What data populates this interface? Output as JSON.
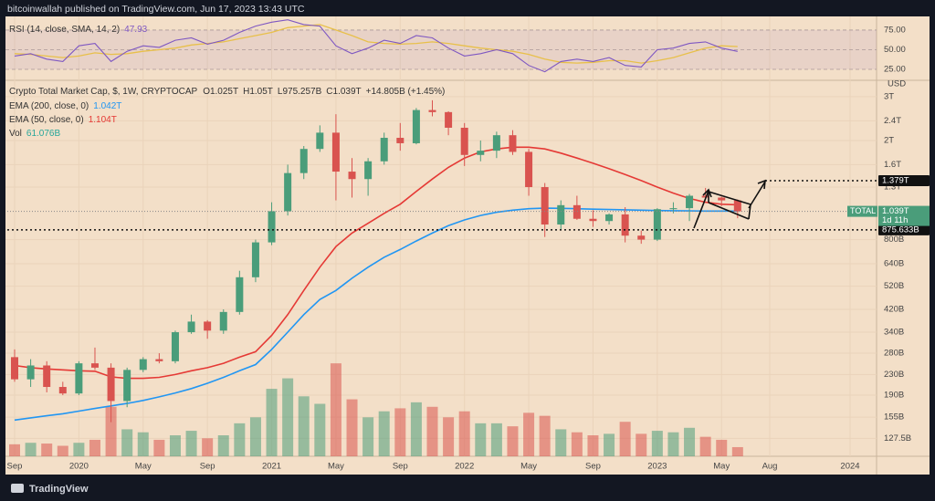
{
  "header": {
    "title": "bitcoinwallah published on TradingView.com, Jun 17, 2023 13:43 UTC"
  },
  "footer": {
    "brand": "TradingView"
  },
  "chart_data": {
    "type": "candlestick",
    "title": "Crypto Total Market Cap, $, 1W, CRYPTOCAP",
    "ohlc_labels": [
      "O1.025T",
      "H1.05T",
      "L975.257B",
      "C1.039T",
      "+14.805B (+1.45%)"
    ],
    "currency": "USD",
    "log_scale": true,
    "up_color": "#4a9d7a",
    "down_color": "#d9534f",
    "x": [
      "2019-09",
      "2019-10",
      "2019-11",
      "2019-12",
      "2020-01",
      "2020-02",
      "2020-03",
      "2020-04",
      "2020-05",
      "2020-06",
      "2020-07",
      "2020-08",
      "2020-09",
      "2020-10",
      "2020-11",
      "2020-12",
      "2021-01",
      "2021-02",
      "2021-03",
      "2021-04",
      "2021-05",
      "2021-06",
      "2021-07",
      "2021-08",
      "2021-09",
      "2021-10",
      "2021-11",
      "2021-12",
      "2022-01",
      "2022-02",
      "2022-03",
      "2022-04",
      "2022-05",
      "2022-06",
      "2022-07",
      "2022-08",
      "2022-09",
      "2022-10",
      "2022-11",
      "2022-12",
      "2023-01",
      "2023-02",
      "2023-03",
      "2023-04",
      "2023-05",
      "2023-06"
    ],
    "open": [
      270,
      220,
      250,
      205,
      193,
      255,
      245,
      180,
      240,
      265,
      260,
      340,
      375,
      345,
      410,
      565,
      780,
      1040,
      1480,
      1850,
      2150,
      1500,
      1400,
      1650,
      2050,
      1950,
      2650,
      2600,
      2250,
      1750,
      1820,
      2100,
      1800,
      1300,
      920,
      1100,
      970,
      950,
      1010,
      830,
      800,
      1060,
      1070,
      1200,
      1180,
      1150
    ],
    "high": [
      290,
      265,
      260,
      215,
      260,
      295,
      255,
      245,
      270,
      280,
      345,
      400,
      380,
      420,
      600,
      800,
      1130,
      1600,
      1900,
      2300,
      2550,
      1700,
      1700,
      2150,
      2350,
      2700,
      2900,
      2620,
      2350,
      2000,
      2170,
      2200,
      1850,
      1350,
      1150,
      1200,
      1050,
      1020,
      1080,
      870,
      1070,
      1130,
      1220,
      1290,
      1190,
      1160
    ],
    "low": [
      215,
      205,
      195,
      190,
      190,
      240,
      148,
      170,
      235,
      255,
      255,
      335,
      320,
      335,
      400,
      540,
      760,
      1000,
      1400,
      1800,
      1150,
      1180,
      1200,
      1600,
      1820,
      1930,
      2500,
      2100,
      1580,
      1650,
      1700,
      1750,
      1200,
      820,
      880,
      960,
      900,
      920,
      780,
      770,
      790,
      1020,
      950,
      1150,
      1090,
      975
    ],
    "close": [
      220,
      250,
      205,
      193,
      255,
      245,
      180,
      240,
      265,
      260,
      340,
      375,
      345,
      410,
      565,
      780,
      1040,
      1480,
      1850,
      2150,
      1500,
      1400,
      1650,
      2050,
      1950,
      2650,
      2600,
      2250,
      1750,
      1820,
      2100,
      1800,
      1300,
      920,
      1100,
      970,
      950,
      1010,
      830,
      800,
      1060,
      1070,
      1200,
      1180,
      1150,
      1039
    ],
    "last_label": {
      "name": "TOTAL",
      "value": 1039,
      "label": "1.039T",
      "countdown": "1d 11h",
      "color": "#4a9d7a"
    },
    "lines": [
      {
        "name": "EMA (200, close, 0)",
        "value_label": "1.042T",
        "color": "#2196f3",
        "values": [
          151,
          154,
          157,
          160,
          164,
          168,
          172,
          176,
          181,
          187,
          194,
          202,
          212,
          224,
          238,
          252,
          290,
          340,
          400,
          460,
          500,
          560,
          620,
          680,
          730,
          790,
          850,
          910,
          960,
          1000,
          1030,
          1050,
          1065,
          1070,
          1068,
          1065,
          1060,
          1057,
          1054,
          1050,
          1047,
          1045,
          1043,
          1042,
          1042,
          1042
        ]
      },
      {
        "name": "EMA (50, close, 0)",
        "value_label": "1.104T",
        "color": "#e53935",
        "values": [
          250,
          245,
          242,
          240,
          238,
          237,
          225,
          222,
          222,
          224,
          230,
          238,
          245,
          255,
          270,
          284,
          330,
          400,
          500,
          620,
          750,
          850,
          930,
          1020,
          1110,
          1250,
          1400,
          1560,
          1700,
          1800,
          1850,
          1880,
          1880,
          1850,
          1780,
          1700,
          1620,
          1540,
          1460,
          1380,
          1300,
          1230,
          1170,
          1130,
          1110,
          1104
        ]
      }
    ],
    "volume": {
      "name": "Vol",
      "value_label": "61.076B",
      "color": "#26a69a",
      "vlim": [
        0,
        700
      ],
      "values": [
        80,
        90,
        85,
        70,
        90,
        110,
        330,
        180,
        160,
        110,
        140,
        170,
        120,
        140,
        220,
        260,
        450,
        520,
        400,
        350,
        620,
        380,
        260,
        300,
        320,
        360,
        330,
        260,
        300,
        220,
        220,
        200,
        290,
        270,
        180,
        160,
        140,
        150,
        230,
        150,
        170,
        160,
        190,
        130,
        110,
        61.076
      ]
    },
    "rsi": {
      "name": "RSI (14, close, SMA, 14, 2)",
      "value_label": "47.93",
      "color": "#7e57c2",
      "sma_color": "#e8c04a",
      "ylim": [
        22.7,
        90
      ],
      "yticks": [
        {
          "value": 75,
          "label": "75.00"
        },
        {
          "value": 50,
          "label": "50.00"
        },
        {
          "value": 25,
          "label": "25.00"
        }
      ],
      "values": [
        42,
        45,
        38,
        35,
        55,
        58,
        35,
        48,
        55,
        53,
        62,
        65,
        57,
        62,
        72,
        80,
        85,
        88,
        82,
        80,
        55,
        45,
        52,
        62,
        58,
        68,
        65,
        52,
        42,
        45,
        50,
        45,
        30,
        22,
        35,
        38,
        35,
        40,
        30,
        28,
        50,
        52,
        58,
        60,
        52,
        47.93
      ],
      "sma": [
        45,
        44,
        42,
        40,
        42,
        46,
        44,
        45,
        48,
        50,
        52,
        56,
        58,
        60,
        64,
        68,
        72,
        78,
        80,
        82,
        75,
        68,
        60,
        58,
        57,
        58,
        60,
        58,
        55,
        52,
        50,
        48,
        44,
        38,
        34,
        33,
        34,
        36,
        36,
        33,
        36,
        40,
        46,
        52,
        55,
        54
      ]
    },
    "levels": [
      {
        "value": 1379,
        "label": "1.379T"
      },
      {
        "value": 875.633,
        "label": "875.633B"
      }
    ],
    "ylim": [
      108,
      3430
    ],
    "yticks": [
      {
        "value": 127.5,
        "label": "127.5B"
      },
      {
        "value": 155,
        "label": "155B"
      },
      {
        "value": 190,
        "label": "190B"
      },
      {
        "value": 230,
        "label": "230B"
      },
      {
        "value": 280,
        "label": "280B"
      },
      {
        "value": 340,
        "label": "340B"
      },
      {
        "value": 420,
        "label": "420B"
      },
      {
        "value": 520,
        "label": "520B"
      },
      {
        "value": 640,
        "label": "640B"
      },
      {
        "value": 800,
        "label": "800B"
      },
      {
        "value": 1300,
        "label": "1.3T"
      },
      {
        "value": 1600,
        "label": "1.6T"
      },
      {
        "value": 2000,
        "label": "2T"
      },
      {
        "value": 2400,
        "label": "2.4T"
      },
      {
        "value": 3000,
        "label": "3T"
      }
    ],
    "xlim": [
      "2019-09",
      "2024-01"
    ],
    "xticks": [
      {
        "value": "2019-09",
        "label": "Sep"
      },
      {
        "value": "2020-01",
        "label": "2020"
      },
      {
        "value": "2020-05",
        "label": "May"
      },
      {
        "value": "2020-09",
        "label": "Sep"
      },
      {
        "value": "2021-01",
        "label": "2021"
      },
      {
        "value": "2021-05",
        "label": "May"
      },
      {
        "value": "2021-09",
        "label": "Sep"
      },
      {
        "value": "2022-01",
        "label": "2022"
      },
      {
        "value": "2022-05",
        "label": "May"
      },
      {
        "value": "2022-09",
        "label": "Sep"
      },
      {
        "value": "2023-01",
        "label": "2023"
      },
      {
        "value": "2023-05",
        "label": "May"
      },
      {
        "value": "2023-08",
        "label": "Aug"
      },
      {
        "value": "2024-01",
        "label": "2024"
      }
    ]
  }
}
